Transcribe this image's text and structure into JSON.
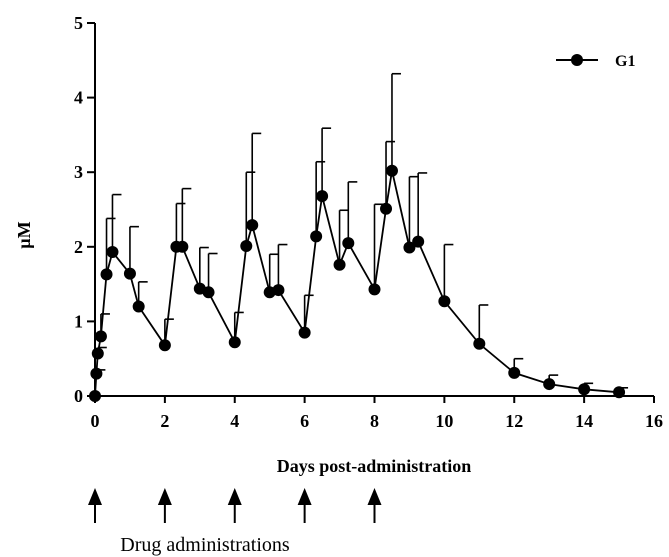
{
  "chart_data": {
    "type": "line",
    "title": "",
    "xlabel": "Days post-administration",
    "ylabel": "µM",
    "xlim": [
      0,
      16
    ],
    "ylim": [
      0,
      5
    ],
    "x_ticks": [
      "0",
      "2",
      "4",
      "6",
      "8",
      "10",
      "12",
      "14",
      "16"
    ],
    "y_ticks": [
      "0",
      "1",
      "2",
      "3",
      "4",
      "5"
    ],
    "legend_position": "top-right",
    "grid": false,
    "series": [
      {
        "name": "G1",
        "color": "#000000",
        "marker": "filled-circle",
        "points": [
          {
            "x": 0.0,
            "y": 0.0,
            "err": 0.0
          },
          {
            "x": 0.04,
            "y": 0.3,
            "err": 0.05
          },
          {
            "x": 0.08,
            "y": 0.57,
            "err": 0.08
          },
          {
            "x": 0.17,
            "y": 0.8,
            "err": 0.3
          },
          {
            "x": 0.33,
            "y": 1.63,
            "err": 0.75
          },
          {
            "x": 0.5,
            "y": 1.93,
            "err": 0.77
          },
          {
            "x": 1.0,
            "y": 1.64,
            "err": 0.63
          },
          {
            "x": 1.25,
            "y": 1.2,
            "err": 0.33
          },
          {
            "x": 2.0,
            "y": 0.68,
            "err": 0.35
          },
          {
            "x": 2.33,
            "y": 2.0,
            "err": 0.58
          },
          {
            "x": 2.5,
            "y": 2.0,
            "err": 0.78
          },
          {
            "x": 3.0,
            "y": 1.44,
            "err": 0.55
          },
          {
            "x": 3.25,
            "y": 1.39,
            "err": 0.52
          },
          {
            "x": 4.0,
            "y": 0.72,
            "err": 0.4
          },
          {
            "x": 4.33,
            "y": 2.01,
            "err": 0.99
          },
          {
            "x": 4.5,
            "y": 2.29,
            "err": 1.23
          },
          {
            "x": 5.0,
            "y": 1.39,
            "err": 0.51
          },
          {
            "x": 5.25,
            "y": 1.42,
            "err": 0.61
          },
          {
            "x": 6.0,
            "y": 0.85,
            "err": 0.5
          },
          {
            "x": 6.33,
            "y": 2.14,
            "err": 1.0
          },
          {
            "x": 6.5,
            "y": 2.68,
            "err": 0.91
          },
          {
            "x": 7.0,
            "y": 1.76,
            "err": 0.73
          },
          {
            "x": 7.25,
            "y": 2.05,
            "err": 0.82
          },
          {
            "x": 8.0,
            "y": 1.43,
            "err": 1.14
          },
          {
            "x": 8.33,
            "y": 2.51,
            "err": 0.9
          },
          {
            "x": 8.5,
            "y": 3.02,
            "err": 1.3
          },
          {
            "x": 9.0,
            "y": 1.99,
            "err": 0.95
          },
          {
            "x": 9.25,
            "y": 2.07,
            "err": 0.92
          },
          {
            "x": 10.0,
            "y": 1.27,
            "err": 0.76
          },
          {
            "x": 11.0,
            "y": 0.7,
            "err": 0.52
          },
          {
            "x": 12.0,
            "y": 0.31,
            "err": 0.19
          },
          {
            "x": 13.0,
            "y": 0.16,
            "err": 0.12
          },
          {
            "x": 14.0,
            "y": 0.09,
            "err": 0.08
          },
          {
            "x": 15.0,
            "y": 0.05,
            "err": 0.06
          }
        ]
      }
    ],
    "annotations": {
      "dose_days": [
        0,
        2,
        4,
        6,
        8
      ],
      "dose_label": "Drug administrations"
    }
  }
}
